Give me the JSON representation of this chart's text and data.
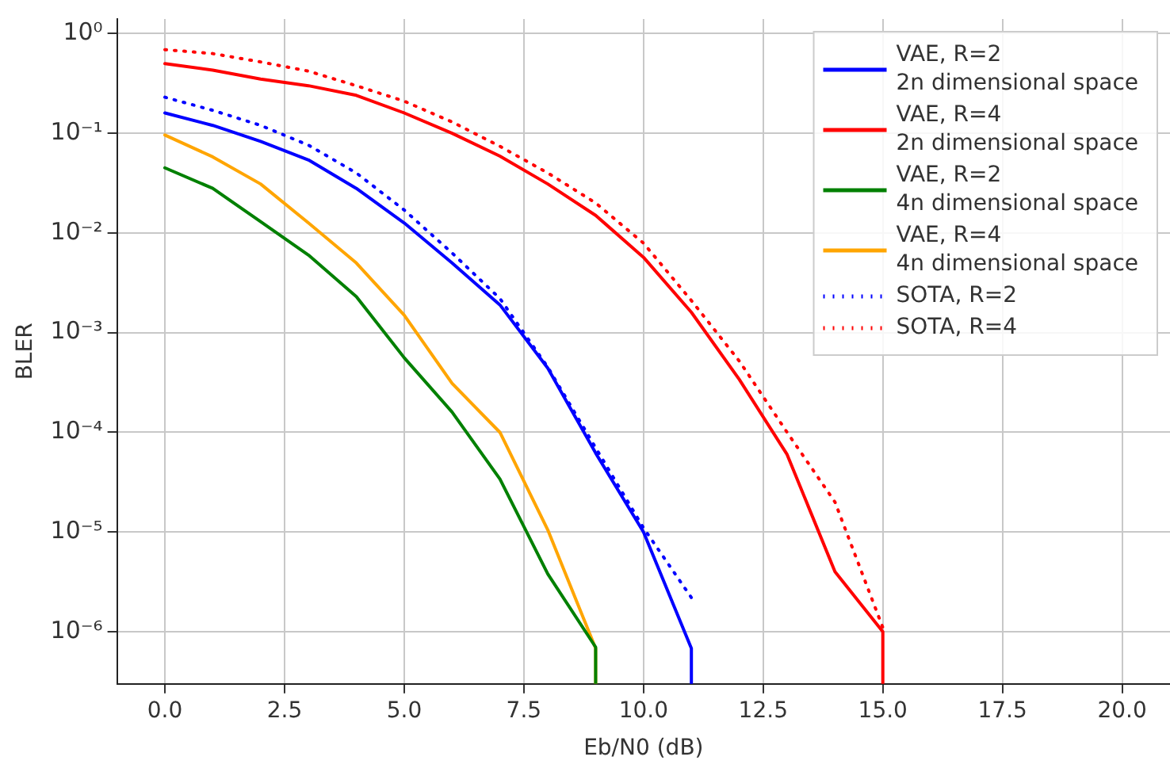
{
  "chart_data": {
    "type": "line",
    "xlabel": "Eb/N0 (dB)",
    "ylabel": "BLER",
    "log": "y",
    "grid": true,
    "legend": "top right",
    "marker": "none",
    "xlim": [
      -1,
      21
    ],
    "xticks": [
      {
        "value": 0,
        "label": "0.0"
      },
      {
        "value": 2.5,
        "label": "2.5"
      },
      {
        "value": 5,
        "label": "5.0"
      },
      {
        "value": 7.5,
        "label": "7.5"
      },
      {
        "value": 10,
        "label": "10.0"
      },
      {
        "value": 12.5,
        "label": "12.5"
      },
      {
        "value": 15,
        "label": "15.0"
      },
      {
        "value": 17.5,
        "label": "17.5"
      },
      {
        "value": 20,
        "label": "20.0"
      }
    ],
    "ylim": [
      3e-07,
      1.4
    ],
    "yticks": [
      {
        "value": 1,
        "label": "10⁰"
      },
      {
        "value": 0.1,
        "label": "10⁻¹"
      },
      {
        "value": 0.01,
        "label": "10⁻²"
      },
      {
        "value": 0.001,
        "label": "10⁻³"
      },
      {
        "value": 0.0001,
        "label": "10⁻⁴"
      },
      {
        "value": 1e-05,
        "label": "10⁻⁵"
      },
      {
        "value": 1e-06,
        "label": "10⁻⁶"
      }
    ],
    "series": [
      {
        "name": "VAE, R=2\n2n dimensional space",
        "color": "#0000ff",
        "line_style": "solid",
        "x": [
          0,
          1,
          2,
          3,
          4,
          5,
          6,
          7,
          8,
          9,
          10,
          11,
          11
        ],
        "values": [
          0.16,
          0.12,
          0.083,
          0.054,
          0.028,
          0.0126,
          0.005,
          0.0019,
          0.00044,
          6.2e-05,
          1e-05,
          6.8e-07,
          3e-07
        ]
      },
      {
        "name": "VAE, R=4\n2n dimensional space",
        "color": "#ff0000",
        "line_style": "solid",
        "x": [
          0,
          1,
          2,
          3,
          4,
          5,
          6,
          7,
          8,
          9,
          10,
          11,
          12,
          13,
          14,
          15,
          15
        ],
        "values": [
          0.5,
          0.43,
          0.35,
          0.3,
          0.24,
          0.16,
          0.1,
          0.059,
          0.031,
          0.015,
          0.0057,
          0.0016,
          0.00034,
          6e-05,
          4e-06,
          1e-06,
          3e-07
        ]
      },
      {
        "name": "VAE, R=2\n4n dimensional space",
        "color": "#008000",
        "line_style": "solid",
        "x": [
          0,
          1,
          2,
          3,
          4,
          5,
          6,
          7,
          8,
          9,
          9
        ],
        "values": [
          0.045,
          0.028,
          0.013,
          0.006,
          0.0023,
          0.00056,
          0.00016,
          3.4e-05,
          3.8e-06,
          7e-07,
          3e-07
        ]
      },
      {
        "name": "VAE, R=4\n4n dimensional space",
        "color": "#ffa500",
        "line_style": "solid",
        "x": [
          0,
          1,
          2,
          3,
          4,
          5,
          6,
          7,
          8,
          9,
          9
        ],
        "values": [
          0.096,
          0.058,
          0.031,
          0.0126,
          0.005,
          0.0015,
          0.00031,
          0.0001,
          1.05e-05,
          6.8e-07,
          3e-07
        ]
      },
      {
        "name": "SOTA, R=2",
        "color": "#0000ff",
        "line_style": "dotted",
        "x": [
          0,
          1,
          2,
          3,
          4,
          5,
          6,
          7,
          8,
          9,
          10,
          11
        ],
        "values": [
          0.23,
          0.17,
          0.12,
          0.076,
          0.04,
          0.017,
          0.0063,
          0.0022,
          0.00045,
          7e-05,
          1.1e-05,
          2.2e-06
        ]
      },
      {
        "name": "SOTA, R=4",
        "color": "#ff0000",
        "line_style": "dotted",
        "x": [
          0,
          1,
          2,
          3,
          4,
          5,
          6,
          7,
          8,
          9,
          10,
          11,
          12,
          13,
          14,
          15
        ],
        "values": [
          0.69,
          0.63,
          0.52,
          0.42,
          0.3,
          0.21,
          0.13,
          0.074,
          0.04,
          0.02,
          0.0079,
          0.0021,
          0.00052,
          0.0001,
          2e-05,
          1.1e-06
        ]
      }
    ]
  }
}
